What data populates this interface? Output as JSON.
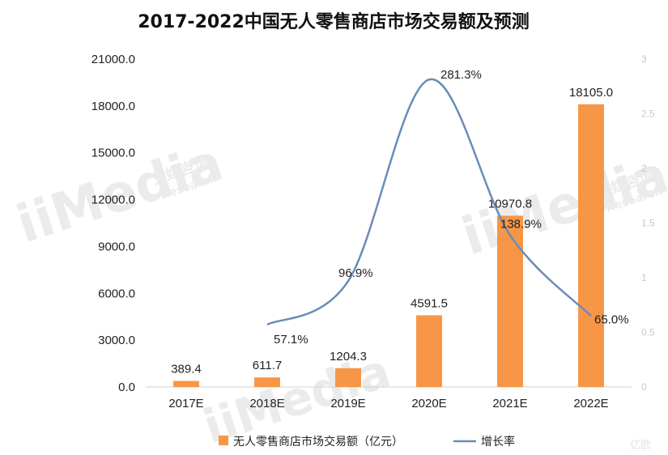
{
  "chart_data": {
    "type": "bar",
    "title": "2017-2022中国无人零售商店市场交易额及预测",
    "categories": [
      "2017E",
      "2018E",
      "2019E",
      "2020E",
      "2021E",
      "2022E"
    ],
    "series": [
      {
        "name": "无人零售商店市场交易额（亿元）",
        "type": "bar",
        "axis": "left",
        "color": "#F79646",
        "values": [
          389.4,
          611.7,
          1204.3,
          4591.5,
          10970.8,
          18105.0
        ],
        "labels": [
          "389.4",
          "611.7",
          "1204.3",
          "4591.5",
          "10970.8",
          "18105.0"
        ]
      },
      {
        "name": "增长率",
        "type": "line",
        "axis": "right",
        "color": "#6A8CB8",
        "values": [
          null,
          0.571,
          0.969,
          2.813,
          1.389,
          0.65
        ],
        "labels": [
          "",
          "57.1%",
          "96.9%",
          "281.3%",
          "138.9%",
          "65.0%"
        ]
      }
    ],
    "y_left": {
      "ylim": [
        0,
        21000
      ],
      "ticks": [
        "0.0",
        "3000.0",
        "6000.0",
        "9000.0",
        "12000.0",
        "15000.0",
        "18000.0",
        "21000.0"
      ]
    },
    "y_right": {
      "ylim": [
        0,
        3
      ],
      "ticks": [
        "0",
        "0.5",
        "1",
        "1.5",
        "2",
        "2.5",
        "3"
      ]
    },
    "grid": false,
    "legend_position": "bottom"
  },
  "watermark": {
    "brand": "iiMedia",
    "cn": "艾媒咨询",
    "en": "Research",
    "corner": "亿欧"
  }
}
